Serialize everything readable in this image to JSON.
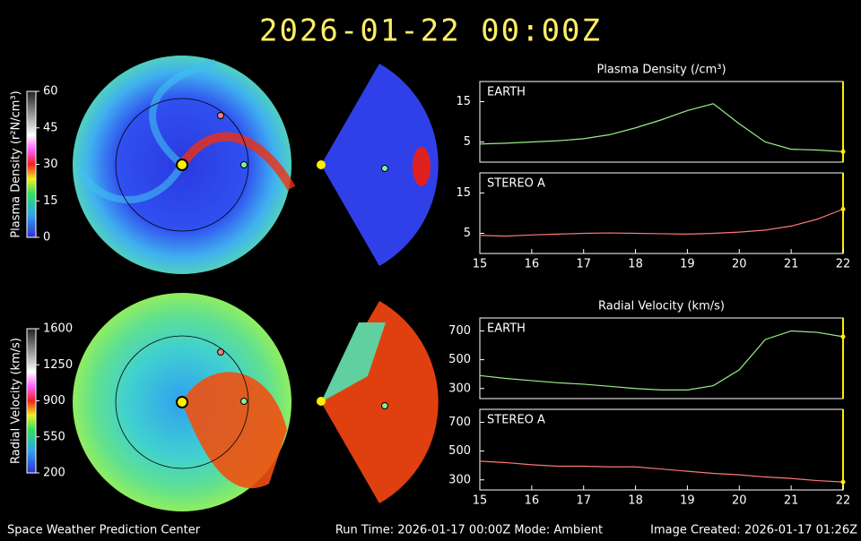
{
  "title": "2026-01-22  00:00Z",
  "footer": {
    "left": "Space Weather Prediction Center",
    "center": "Run Time: 2026-01-17 00:00Z  Mode: Ambient",
    "right": "Image Created: 2026-01-17 01:26Z"
  },
  "colorbars": [
    {
      "label": "Plasma Density (r²N/cm³)",
      "ticks": [
        0,
        15,
        30,
        45,
        60
      ]
    },
    {
      "label": "Radial Velocity (km/s)",
      "ticks": [
        200,
        550,
        900,
        1250,
        1600
      ]
    }
  ],
  "chart_data": [
    {
      "type": "line",
      "title": "Plasma Density (/cm³)",
      "x": [
        15,
        15.5,
        16,
        16.5,
        17,
        17.5,
        18,
        18.5,
        19,
        19.5,
        20,
        20.5,
        21,
        21.5,
        22
      ],
      "series": [
        {
          "name": "EARTH",
          "color": "#99ee88",
          "values": [
            4.5,
            4.7,
            5.0,
            5.3,
            5.8,
            6.8,
            8.5,
            10.5,
            12.8,
            14.5,
            9.5,
            5.0,
            3.2,
            3.0,
            2.6
          ]
        }
      ],
      "xlim": [
        15,
        22
      ],
      "ylim": [
        0,
        20
      ],
      "yticks": [
        5,
        15
      ]
    },
    {
      "type": "line",
      "x": [
        15,
        15.5,
        16,
        16.5,
        17,
        17.5,
        18,
        18.5,
        19,
        19.5,
        20,
        20.5,
        21,
        21.5,
        22
      ],
      "series": [
        {
          "name": "STEREO A",
          "color": "#ff7777",
          "values": [
            4.5,
            4.3,
            4.6,
            4.8,
            5.0,
            5.1,
            5.0,
            4.9,
            4.8,
            5.0,
            5.3,
            5.8,
            6.8,
            8.5,
            11.0
          ]
        }
      ],
      "xlim": [
        15,
        22
      ],
      "xticks": [
        15,
        16,
        17,
        18,
        19,
        20,
        21,
        22
      ],
      "ylim": [
        0,
        20
      ],
      "yticks": [
        5,
        15
      ]
    },
    {
      "type": "line",
      "title": "Radial Velocity (km/s)",
      "x": [
        15,
        15.5,
        16,
        16.5,
        17,
        17.5,
        18,
        18.5,
        19,
        19.5,
        20,
        20.5,
        21,
        21.5,
        22
      ],
      "series": [
        {
          "name": "EARTH",
          "color": "#99ee88",
          "values": [
            390,
            370,
            355,
            340,
            330,
            315,
            300,
            290,
            290,
            320,
            430,
            640,
            700,
            690,
            660
          ]
        }
      ],
      "xlim": [
        15,
        22
      ],
      "ylim": [
        230,
        790
      ],
      "yticks": [
        300,
        500,
        700
      ]
    },
    {
      "type": "line",
      "x": [
        15,
        15.5,
        16,
        16.5,
        17,
        17.5,
        18,
        18.5,
        19,
        19.5,
        20,
        20.5,
        21,
        21.5,
        22
      ],
      "series": [
        {
          "name": "STEREO A",
          "color": "#ff7777",
          "values": [
            430,
            420,
            405,
            395,
            395,
            390,
            390,
            375,
            360,
            345,
            335,
            320,
            310,
            295,
            285
          ]
        }
      ],
      "xlim": [
        15,
        22
      ],
      "xticks": [
        15,
        16,
        17,
        18,
        19,
        20,
        21,
        22
      ],
      "ylim": [
        230,
        790
      ],
      "yticks": [
        300,
        500,
        700
      ]
    }
  ]
}
